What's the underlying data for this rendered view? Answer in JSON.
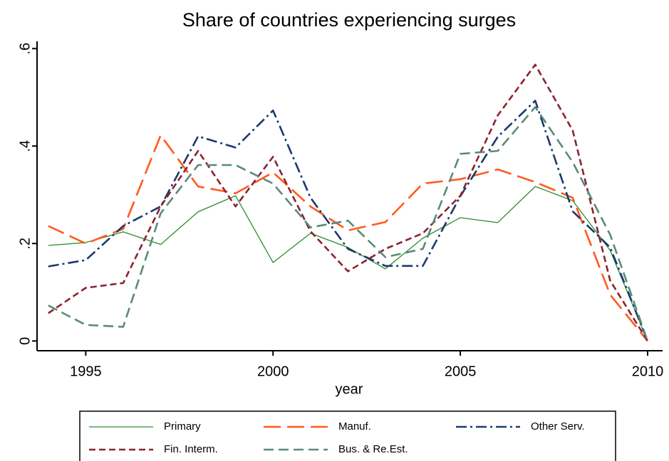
{
  "chart_data": {
    "type": "line",
    "title": "Share of countries experiencing surges",
    "x_label": "year",
    "x": [
      1994,
      1995,
      1996,
      1997,
      1998,
      1999,
      2000,
      2001,
      2002,
      2003,
      2004,
      2005,
      2006,
      2007,
      2008,
      2009,
      2010
    ],
    "xlim": [
      1993.7,
      2010.4
    ],
    "xticks": [
      1995,
      2000,
      2005,
      2010
    ],
    "ylim": [
      -0.02,
      0.615
    ],
    "yticks": [
      {
        "value": 0,
        "label": "0"
      },
      {
        "value": 0.2,
        "label": ".2"
      },
      {
        "value": 0.4,
        "label": ".4"
      },
      {
        "value": 0.6,
        "label": ".6"
      }
    ],
    "grid": false,
    "legend": "bottom",
    "series": [
      {
        "name": "Primary",
        "color": "#2e8b2e",
        "line_style": "solid",
        "values": [
          0.196,
          0.202,
          0.224,
          0.198,
          0.265,
          0.298,
          0.161,
          0.221,
          0.192,
          0.148,
          0.211,
          0.253,
          0.243,
          0.317,
          0.288,
          0.186,
          0
        ]
      },
      {
        "name": "Manuf.",
        "color": "#ff5a1f",
        "line_style": "longdash",
        "values": [
          0.236,
          0.2,
          0.23,
          0.422,
          0.317,
          0.303,
          0.346,
          0.276,
          0.227,
          0.244,
          0.323,
          0.332,
          0.352,
          0.326,
          0.294,
          0.095,
          0
        ]
      },
      {
        "name": "Other Serv.",
        "color": "#1a3a6e",
        "line_style": "dashdot",
        "values": [
          0.153,
          0.166,
          0.236,
          0.276,
          0.42,
          0.397,
          0.473,
          0.294,
          0.189,
          0.154,
          0.154,
          0.297,
          0.419,
          0.493,
          0.266,
          0.192,
          0
        ]
      },
      {
        "name": "Fin. Interm.",
        "color": "#8b2332",
        "line_style": "dash",
        "values": [
          0.057,
          0.109,
          0.119,
          0.276,
          0.39,
          0.276,
          0.378,
          0.225,
          0.143,
          0.189,
          0.221,
          0.298,
          0.463,
          0.567,
          0.432,
          0.124,
          0
        ]
      },
      {
        "name": "Bus. & Re.Est.",
        "color": "#5a8a78",
        "line_style": "mediumdash",
        "values": [
          0.073,
          0.033,
          0.029,
          0.262,
          0.361,
          0.361,
          0.323,
          0.233,
          0.247,
          0.172,
          0.189,
          0.384,
          0.39,
          0.48,
          0.367,
          0.218,
          0
        ]
      }
    ]
  }
}
